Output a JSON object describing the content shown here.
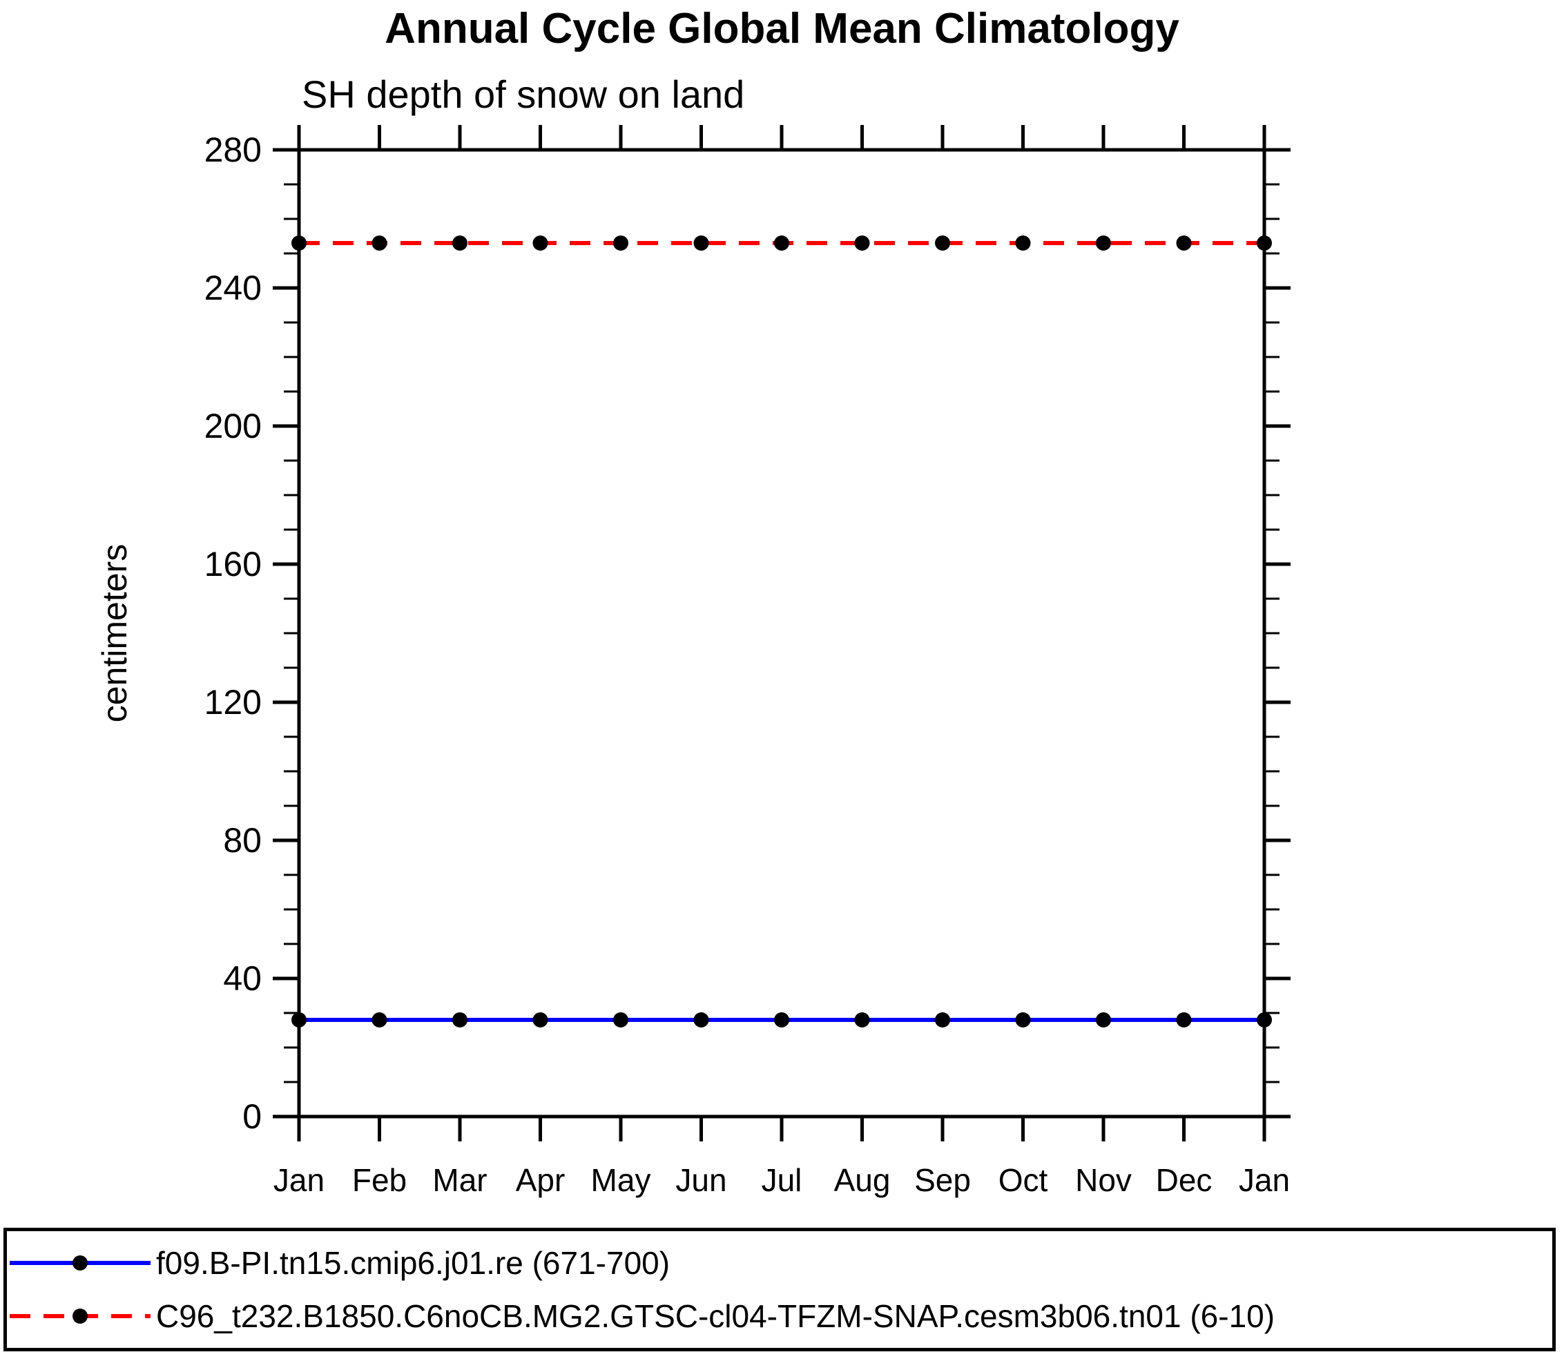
{
  "title": "Annual Cycle Global Mean Climatology",
  "subtitle": "SH depth of snow on land",
  "chart_data": {
    "type": "line",
    "categories": [
      "Jan",
      "Feb",
      "Mar",
      "Apr",
      "May",
      "Jun",
      "Jul",
      "Aug",
      "Sep",
      "Oct",
      "Nov",
      "Dec",
      "Jan"
    ],
    "xlabel": "",
    "ylabel": "centimeters",
    "ylim": [
      0,
      280
    ],
    "ytick_major_step": 40,
    "ytick_minor_step": 10,
    "ytick_labels": [
      "0",
      "40",
      "80",
      "120",
      "160",
      "200",
      "240",
      "280"
    ],
    "grid": false,
    "axis_color": "#000000",
    "legend_position": "bottom-outside-box",
    "marker": "filled-circle",
    "marker_color": "#000000",
    "series": [
      {
        "name": "f09.B-PI.tn15.cmip6.j01.re (671-700)",
        "color": "#0000ff",
        "line_style": "solid",
        "values": [
          28,
          28,
          28,
          28,
          28,
          28,
          28,
          28,
          28,
          28,
          28,
          28,
          28
        ]
      },
      {
        "name": "C96_t232.B1850.C6noCB.MG2.GTSC-cl04-TFZM-SNAP.cesm3b06.tn01 (6-10)",
        "color": "#ff0000",
        "line_style": "dashed",
        "values": [
          253,
          253,
          253,
          253,
          253,
          253,
          253,
          253,
          253,
          253,
          253,
          253,
          253
        ]
      }
    ]
  }
}
